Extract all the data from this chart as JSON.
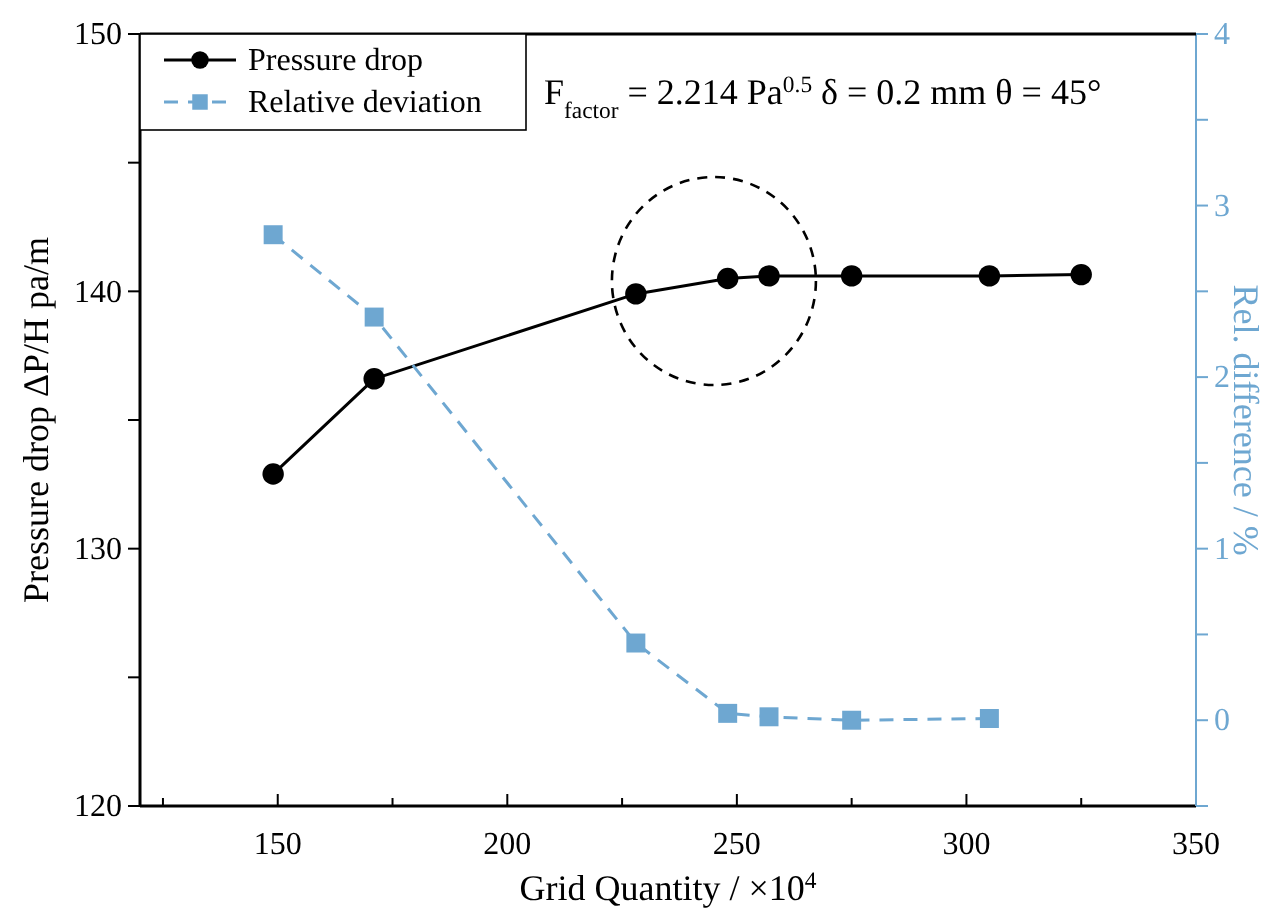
{
  "chart_data": {
    "type": "line",
    "xlabel": "Grid Quantity / ×10$^{4}$",
    "ylabel": "Pressure drop ΔP/H pa/m",
    "y2label": "Rel. difference / %",
    "annotations": [
      "F$_{factor}$ = 2.214 Pa$^{0.5}$  δ = 0.2 mm  θ = 45°"
    ],
    "xlim": [
      120,
      350
    ],
    "xticks": [
      {
        "value": 125,
        "label": null
      },
      150,
      {
        "value": 175,
        "label": null
      },
      200,
      {
        "value": 225,
        "label": null
      },
      250,
      {
        "value": 275,
        "label": null
      },
      300,
      {
        "value": 325,
        "label": null
      },
      350
    ],
    "ylim": [
      120,
      150
    ],
    "yticks": [
      120,
      {
        "value": 125,
        "label": null
      },
      130,
      {
        "value": 135,
        "label": null
      },
      140,
      {
        "value": 145,
        "label": null
      },
      150
    ],
    "y2lim": [
      -0.5,
      4
    ],
    "y2ticks": [
      {
        "value": -0.5,
        "label": null
      },
      0,
      {
        "value": 0.5,
        "label": null
      },
      1,
      {
        "value": 1.5,
        "label": null
      },
      2,
      {
        "value": 2.5,
        "label": null
      },
      3,
      {
        "value": 3.5,
        "label": null
      },
      4
    ],
    "legend": "top left",
    "grid": false,
    "series": [
      {
        "name": "Pressure drop",
        "color": "#000000",
        "marker": "circle",
        "line_style": "solid",
        "x": [
          149,
          171,
          228,
          248,
          257,
          275,
          305,
          325
        ],
        "values": [
          132.9,
          136.6,
          139.9,
          140.5,
          140.6,
          140.6,
          140.6,
          140.65
        ]
      },
      {
        "name": "Relative deviation",
        "color": "#6ea7d1",
        "marker": "square",
        "line_style": "dashed",
        "axis": "y2",
        "x": [
          149,
          171,
          228,
          248,
          257,
          275,
          305
        ],
        "values": [
          2.83,
          2.35,
          0.45,
          0.04,
          0.02,
          0.0,
          0.01
        ]
      }
    ]
  }
}
